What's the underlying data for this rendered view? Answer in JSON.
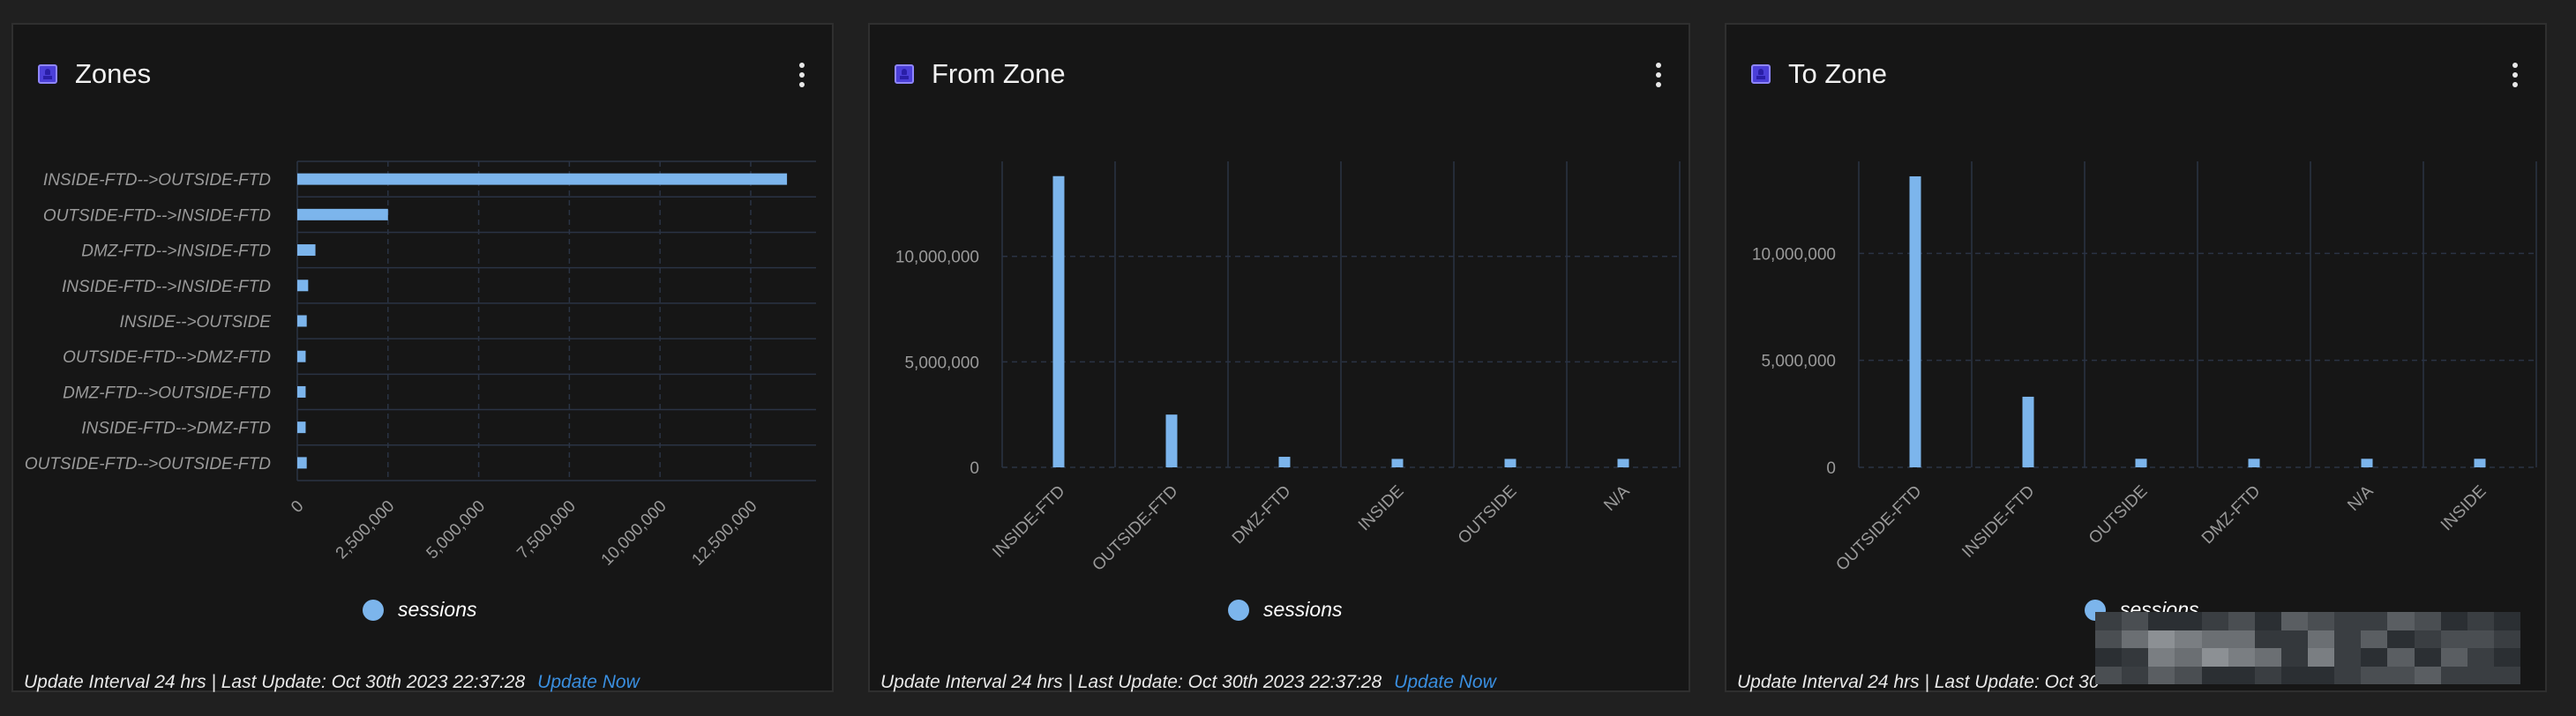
{
  "colors": {
    "bar": "#7cb5ec",
    "grid": "#2a3344",
    "axis_text": "#9a9a9a",
    "link": "#3a8fe0",
    "panel_bg": "#161616",
    "icon": "#4b3fd8"
  },
  "panels": [
    {
      "title": "Zones",
      "icon": "user-badge-icon",
      "menu_icon": "kebab-menu-icon",
      "legend": "sessions",
      "footer": "Update Interval 24 hrs | Last Update: Oct 30th 2023 22:37:28",
      "update_link": "Update Now"
    },
    {
      "title": "From Zone",
      "icon": "user-badge-icon",
      "menu_icon": "kebab-menu-icon",
      "legend": "sessions",
      "footer": "Update Interval 24 hrs | Last Update: Oct 30th 2023 22:37:28",
      "update_link": "Update Now"
    },
    {
      "title": "To Zone",
      "icon": "user-badge-icon",
      "menu_icon": "kebab-menu-icon",
      "legend": "sessions",
      "footer": "Update Interval 24 hrs | Last Update: Oct 30",
      "update_link": ""
    }
  ],
  "chart_data": [
    {
      "type": "bar",
      "orientation": "horizontal",
      "categories": [
        "INSIDE-FTD-->OUTSIDE-FTD",
        "OUTSIDE-FTD-->INSIDE-FTD",
        "DMZ-FTD-->INSIDE-FTD",
        "INSIDE-FTD-->INSIDE-FTD",
        "INSIDE-->OUTSIDE",
        "OUTSIDE-FTD-->DMZ-FTD",
        "DMZ-FTD-->OUTSIDE-FTD",
        "INSIDE-FTD-->DMZ-FTD",
        "OUTSIDE-FTD-->OUTSIDE-FTD"
      ],
      "series": [
        {
          "name": "sessions",
          "values": [
            13500000,
            2500000,
            500000,
            300000,
            260000,
            230000,
            230000,
            230000,
            260000
          ]
        }
      ],
      "xticks": [
        0,
        2500000,
        5000000,
        7500000,
        10000000,
        12500000
      ],
      "xtick_labels": [
        "0",
        "2,500,000",
        "5,000,000",
        "7,500,000",
        "10,000,000",
        "12,500,000"
      ],
      "xlim": [
        0,
        14300000
      ],
      "legend": "bottom-center",
      "grid": true
    },
    {
      "type": "bar",
      "categories": [
        "INSIDE-FTD",
        "OUTSIDE-FTD",
        "DMZ-FTD",
        "INSIDE",
        "OUTSIDE",
        "N/A"
      ],
      "series": [
        {
          "name": "sessions",
          "values": [
            13800000,
            2500000,
            500000,
            400000,
            400000,
            400000
          ]
        }
      ],
      "yticks": [
        0,
        5000000,
        10000000
      ],
      "ytick_labels": [
        "0",
        "5,000,000",
        "10,000,000"
      ],
      "ylim": [
        0,
        14500000
      ],
      "legend": "bottom-center",
      "grid": true
    },
    {
      "type": "bar",
      "categories": [
        "OUTSIDE-FTD",
        "INSIDE-FTD",
        "OUTSIDE",
        "DMZ-FTD",
        "N/A",
        "INSIDE"
      ],
      "series": [
        {
          "name": "sessions",
          "values": [
            13600000,
            3300000,
            400000,
            400000,
            400000,
            400000
          ]
        }
      ],
      "yticks": [
        0,
        5000000,
        10000000
      ],
      "ytick_labels": [
        "0",
        "5,000,000",
        "10,000,000"
      ],
      "ylim": [
        0,
        14300000
      ],
      "legend": "bottom-center",
      "grid": true
    }
  ]
}
